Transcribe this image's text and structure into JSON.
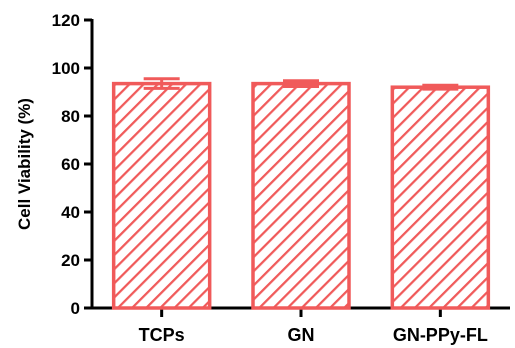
{
  "chart_data": {
    "type": "bar",
    "title": "",
    "xlabel": "",
    "ylabel": "Cell Viability (%)",
    "categories": [
      "TCPs",
      "GN",
      "GN-PPy-FL"
    ],
    "values": [
      93.5,
      93.5,
      92.0
    ],
    "errors": [
      2.0,
      1.2,
      0.8
    ],
    "ylim": [
      0,
      120
    ],
    "yticks": [
      "0",
      "20",
      "40",
      "60",
      "80",
      "100",
      "120"
    ],
    "grid": false,
    "legend": "none",
    "bar_color": "#f05a5a",
    "bar_fill": "diagonal-hatch"
  }
}
